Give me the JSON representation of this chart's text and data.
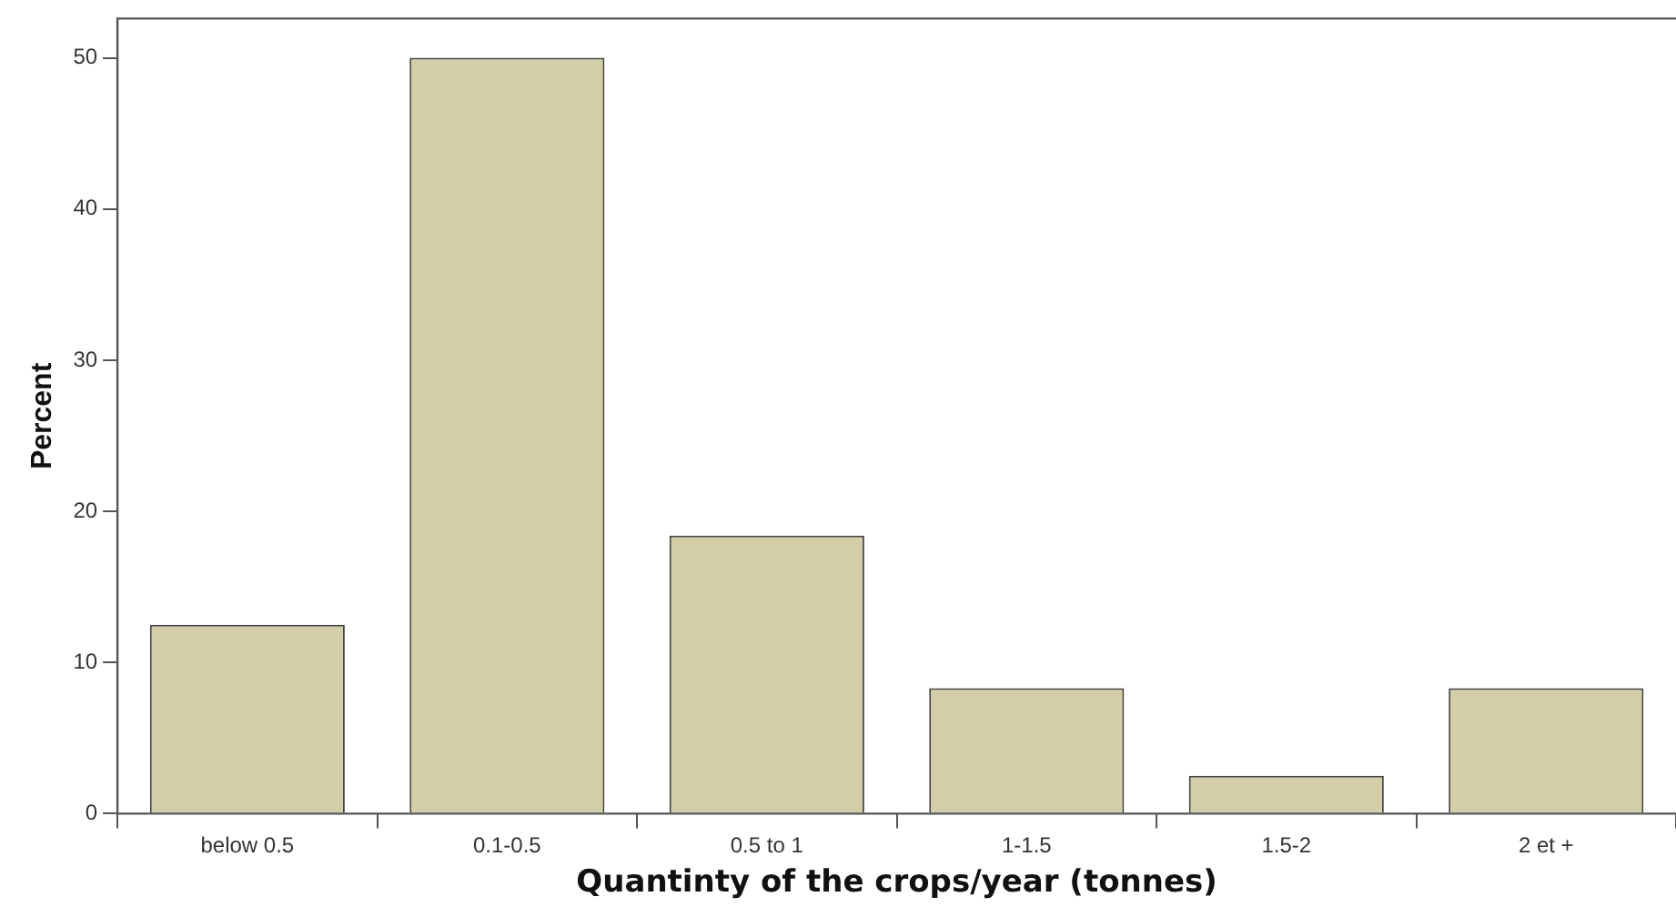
{
  "chart_data": {
    "type": "bar",
    "xlabel": "Quantinty of the crops/year (tonnes)",
    "ylabel": "Percent",
    "categories": [
      "below 0.5",
      "0.1-0.5",
      "0.5 to 1",
      "1-1.5",
      "1.5-2",
      "2 et +"
    ],
    "values": [
      12.5,
      50,
      18.4,
      8.3,
      2.5,
      8.3
    ],
    "color": "#d3cda8",
    "ylim": [
      0,
      52.6
    ],
    "yticks": [
      0,
      10,
      20,
      30,
      40,
      50
    ],
    "grid": false,
    "legend": false
  }
}
